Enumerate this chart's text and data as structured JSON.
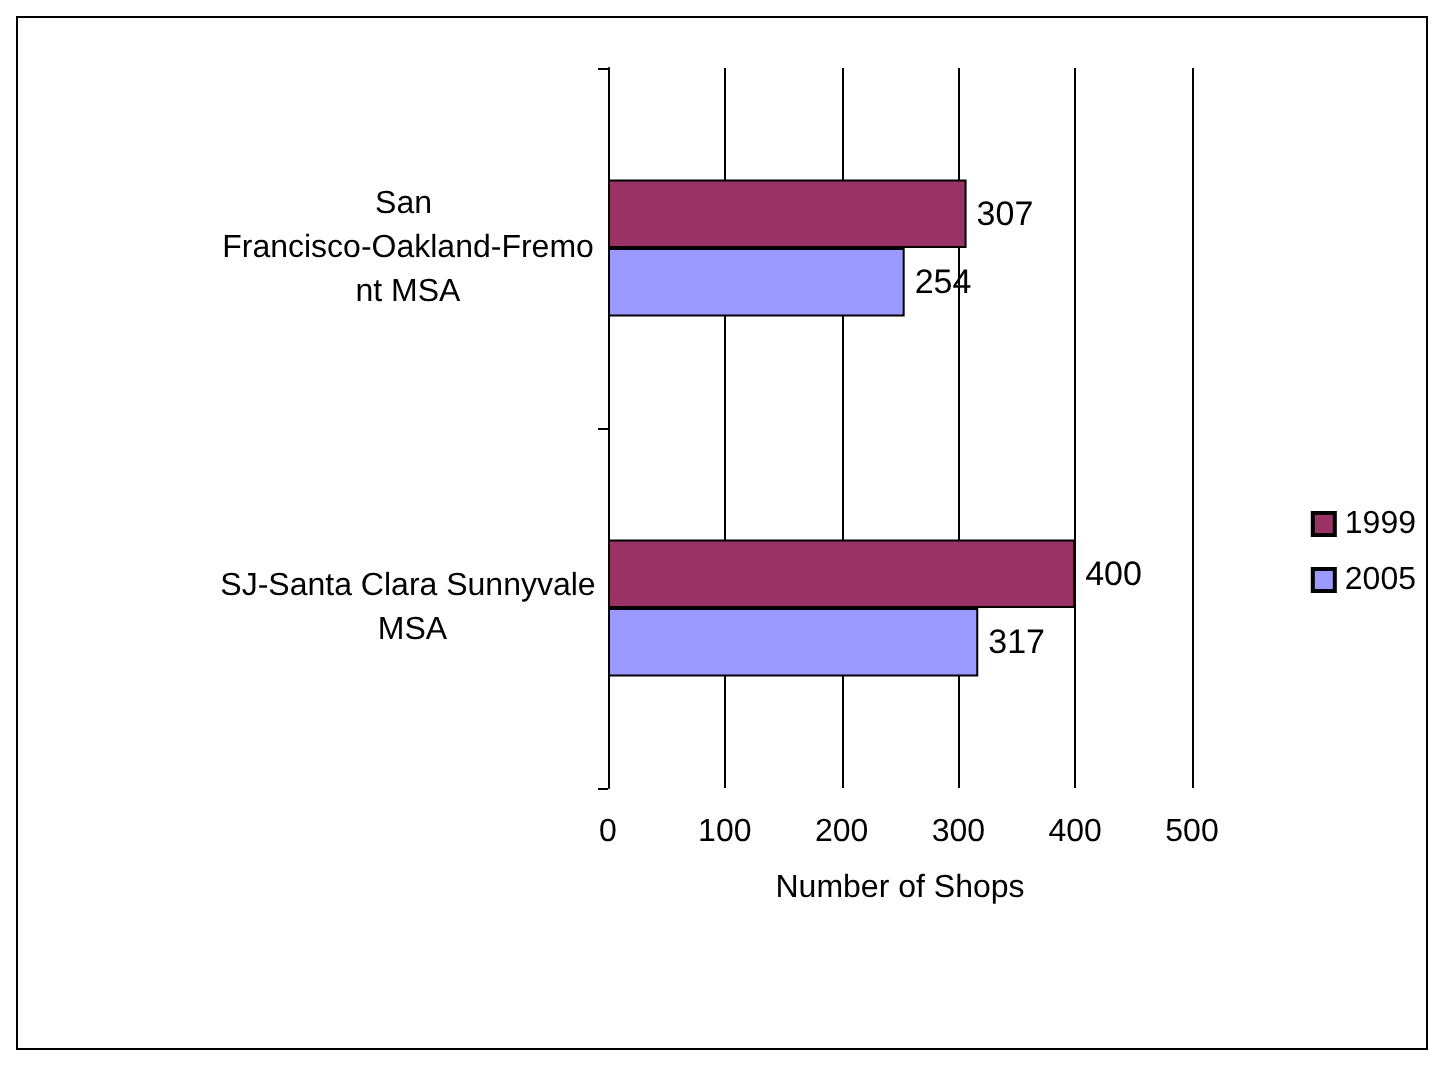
{
  "chart_data": {
    "type": "bar",
    "orientation": "horizontal",
    "xlabel": "Number of Shops",
    "categories": [
      "San Francisco-Oakland-Fremont MSA",
      "SJ-Santa Clara Sunnyvale MSA"
    ],
    "series": [
      {
        "name": "1999",
        "color": "#993366",
        "values": [
          307,
          400
        ]
      },
      {
        "name": "2005",
        "color": "#9999ff",
        "values": [
          254,
          317
        ]
      }
    ],
    "xlim": [
      0,
      500
    ],
    "xticks": [
      0,
      100,
      200,
      300,
      400,
      500
    ],
    "grid": "x",
    "legend": "right",
    "data_labels": true
  }
}
